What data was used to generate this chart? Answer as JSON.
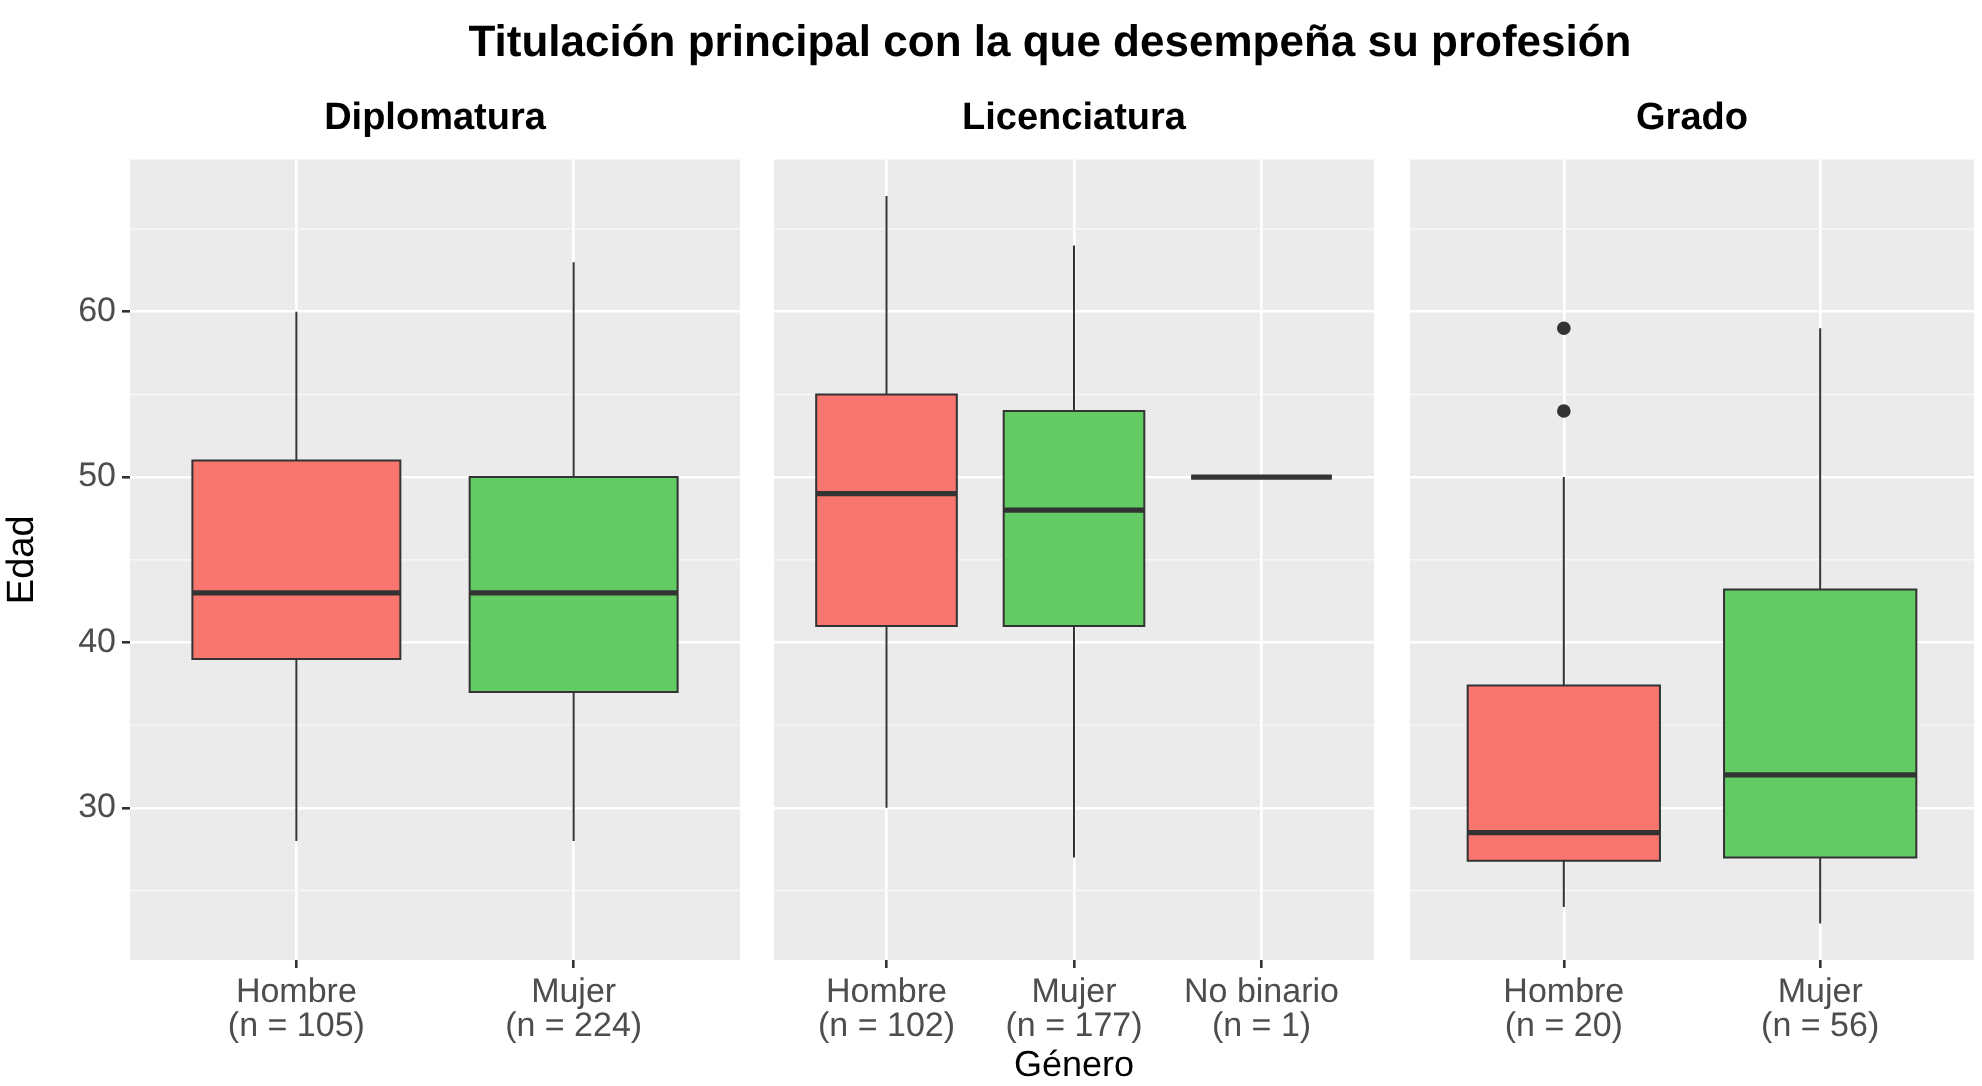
{
  "chart_data": [
    {
      "type": "other",
      "title": "Titulación principal con la que desempeña su profesión"
    },
    {
      "type": "box",
      "subtitle": "Diplomatura",
      "ylabel": "Edad",
      "categories": [
        "Hombre\n(n = 105)",
        "Mujer\n(n = 224)"
      ],
      "colors": [
        "#f8766d",
        "#63cb63"
      ],
      "boxes": [
        {
          "low": 28,
          "q1": 39,
          "median": 43,
          "q3": 51,
          "high": 60
        },
        {
          "low": 28,
          "q1": 37,
          "median": 43,
          "q3": 50,
          "high": 63
        }
      ],
      "ylim": [
        20.8,
        69.2
      ],
      "yticks": [
        30,
        40,
        50,
        60
      ],
      "grid": true
    },
    {
      "type": "box",
      "subtitle": "Licenciatura",
      "xlabel": "Género",
      "categories": [
        "Hombre\n(n = 102)",
        "Mujer\n(n = 177)",
        "No binario\n(n = 1)"
      ],
      "colors": [
        "#f8766d",
        "#63cb63",
        null
      ],
      "boxes": [
        {
          "low": 30,
          "q1": 41,
          "median": 49,
          "q3": 55,
          "high": 67
        },
        {
          "low": 27,
          "q1": 41,
          "median": 48,
          "q3": 54,
          "high": 64
        },
        {
          "low": 50,
          "q1": 50,
          "median": 50,
          "q3": 50,
          "high": 50
        }
      ],
      "ylim": [
        20.8,
        69.2
      ],
      "yticks": [
        30,
        40,
        50,
        60
      ],
      "grid": true,
      "tick_labels": "x"
    },
    {
      "type": "box",
      "subtitle": "Grado",
      "categories": [
        "Hombre\n(n = 20)",
        "Mujer\n(n = 56)"
      ],
      "colors": [
        "#f8766d",
        "#63cb63"
      ],
      "boxes": [
        {
          "low": 24,
          "q1": 26.8,
          "median": 28.5,
          "q3": 37.4,
          "high": 50,
          "outliers": [
            59,
            54
          ]
        },
        {
          "low": 23,
          "q1": 27,
          "median": 32,
          "q3": 43.2,
          "high": 59
        }
      ],
      "ylim": [
        20.8,
        69.2
      ],
      "yticks": [
        30,
        40,
        50,
        60
      ],
      "grid": true,
      "tick_labels": "x"
    }
  ]
}
